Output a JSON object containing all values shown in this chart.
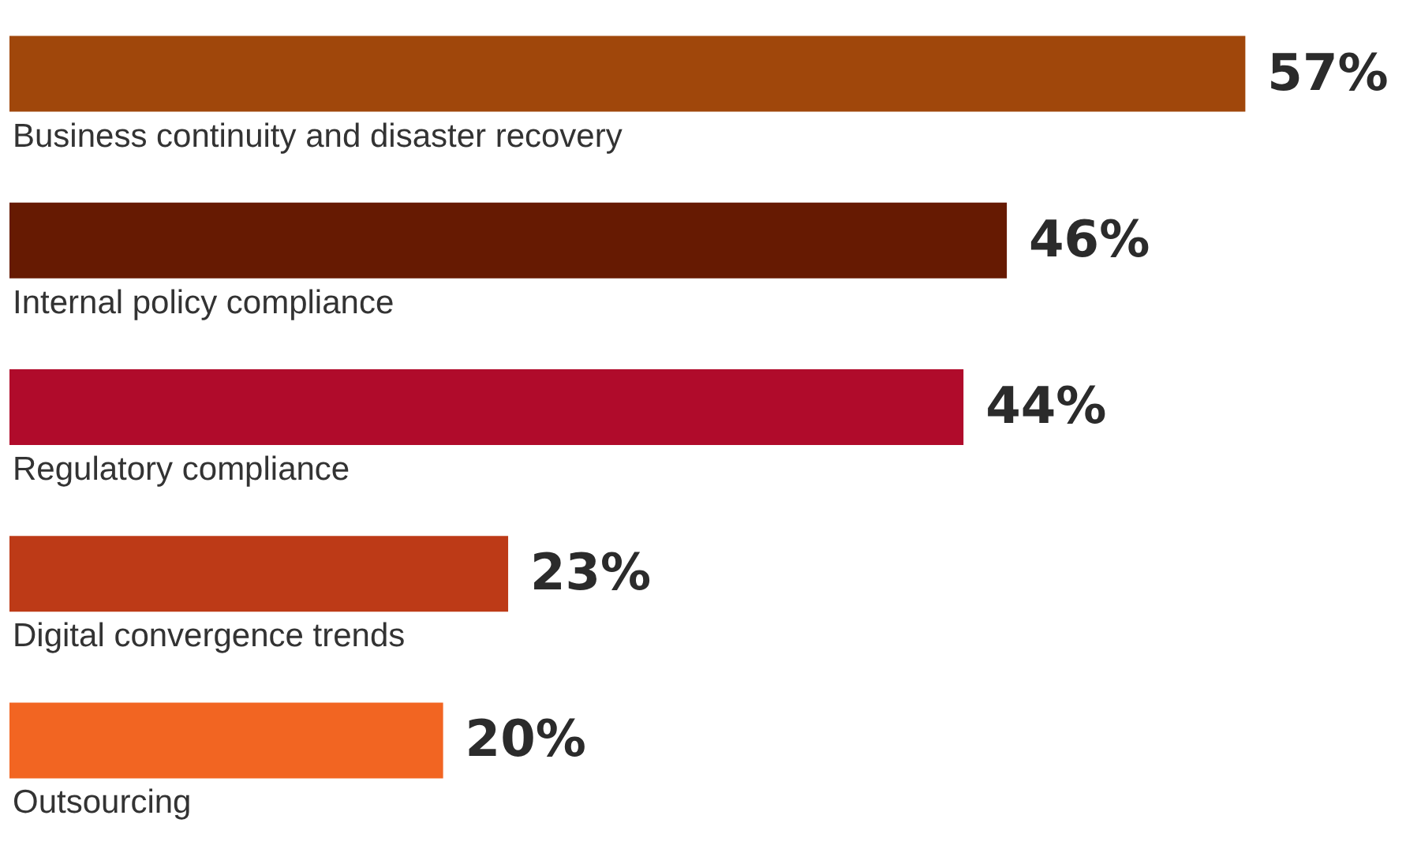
{
  "chart_data": {
    "type": "bar",
    "orientation": "horizontal",
    "categories": [
      "Business continuity and disaster recovery",
      "Internal policy compliance",
      "Regulatory compliance",
      "Digital convergence trends",
      "Outsourcing"
    ],
    "values": [
      57,
      46,
      44,
      23,
      20
    ],
    "colors": [
      "#a0470b",
      "#661a02",
      "#b00b2b",
      "#bd3a17",
      "#f26522"
    ],
    "value_labels": [
      "57%",
      "46%",
      "44%",
      "23%",
      "20%"
    ],
    "tick_labels": false
  }
}
